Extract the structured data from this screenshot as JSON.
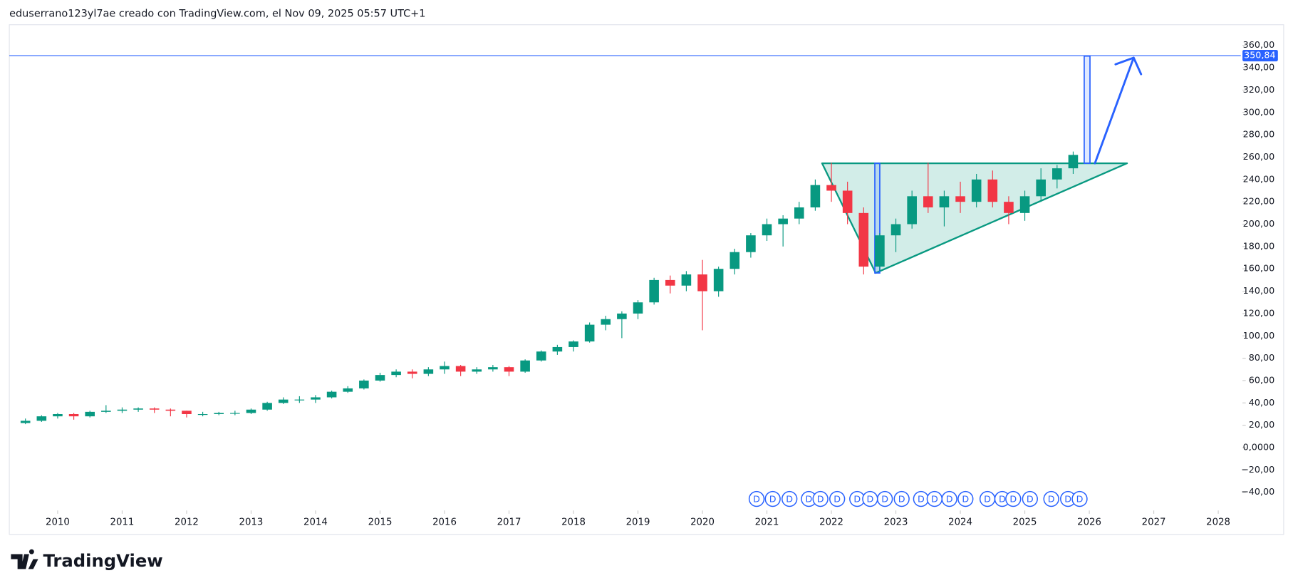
{
  "header": {
    "title": "eduserrano123yl7ae creado con TradingView.com, el Nov 09, 2025 05:57 UTC+1",
    "brand": "TradingView"
  },
  "chart_data": {
    "type": "candlestick",
    "x": [
      2009.5,
      2009.75,
      2010,
      2010.25,
      2010.5,
      2010.75,
      2011,
      2011.25,
      2011.5,
      2011.75,
      2012,
      2012.25,
      2012.5,
      2012.75,
      2013,
      2013.25,
      2013.5,
      2013.75,
      2014,
      2014.25,
      2014.5,
      2014.75,
      2015,
      2015.25,
      2015.5,
      2015.75,
      2016,
      2016.25,
      2016.5,
      2016.75,
      2017,
      2017.25,
      2017.5,
      2017.75,
      2018,
      2018.25,
      2018.5,
      2018.75,
      2019,
      2019.25,
      2019.5,
      2019.75,
      2020,
      2020.25,
      2020.5,
      2020.75,
      2021,
      2021.25,
      2021.5,
      2021.75,
      2022,
      2022.25,
      2022.5,
      2022.75,
      2023,
      2023.25,
      2023.5,
      2023.75,
      2024,
      2024.25,
      2024.5,
      2024.75,
      2025,
      2025.25,
      2025.5,
      2025.75
    ],
    "open": [
      22,
      24,
      28,
      30,
      28,
      32,
      33,
      34,
      35,
      34,
      33,
      30,
      30,
      31,
      31,
      34,
      40,
      43,
      43,
      45,
      50,
      53,
      60,
      65,
      68,
      66,
      70,
      73,
      68,
      70,
      72,
      68,
      78,
      86,
      90,
      95,
      110,
      115,
      120,
      130,
      150,
      145,
      155,
      140,
      160,
      175,
      190,
      200,
      205,
      215,
      235,
      230,
      210,
      162,
      190,
      200,
      225,
      215,
      225,
      220,
      240,
      220,
      210,
      225,
      240,
      250
    ],
    "high": [
      26,
      29,
      31,
      31,
      33,
      38,
      36,
      36,
      36,
      35,
      33,
      32,
      32,
      33,
      35,
      41,
      45,
      46,
      47,
      51,
      55,
      61,
      67,
      70,
      70,
      72,
      77,
      74,
      72,
      74,
      73,
      79,
      87,
      92,
      96,
      112,
      118,
      122,
      132,
      152,
      154,
      158,
      168,
      162,
      178,
      192,
      205,
      208,
      220,
      240,
      255,
      238,
      215,
      192,
      205,
      230,
      255,
      230,
      238,
      245,
      248,
      225,
      230,
      250,
      253,
      265
    ],
    "low": [
      21,
      23,
      26,
      25,
      27,
      31,
      31,
      32,
      31,
      28,
      27,
      28,
      29,
      29,
      30,
      33,
      39,
      40,
      40,
      44,
      49,
      52,
      59,
      63,
      62,
      64,
      66,
      64,
      66,
      68,
      64,
      67,
      77,
      83,
      86,
      94,
      105,
      98,
      115,
      128,
      138,
      140,
      105,
      135,
      155,
      170,
      185,
      180,
      200,
      212,
      220,
      200,
      155,
      158,
      175,
      196,
      210,
      198,
      210,
      215,
      215,
      200,
      203,
      220,
      232,
      245
    ],
    "close": [
      24,
      28,
      30,
      28,
      32,
      33,
      34,
      35,
      34,
      33,
      30,
      30,
      31,
      31,
      34,
      40,
      43,
      43,
      45,
      50,
      53,
      60,
      65,
      68,
      66,
      70,
      73,
      68,
      70,
      72,
      68,
      78,
      86,
      90,
      95,
      110,
      115,
      120,
      130,
      150,
      145,
      155,
      140,
      160,
      175,
      190,
      200,
      205,
      215,
      235,
      230,
      210,
      162,
      190,
      200,
      225,
      215,
      225,
      220,
      240,
      220,
      210,
      225,
      240,
      250,
      262
    ],
    "up_color": "#089981",
    "down_color": "#f23645",
    "xlim": [
      2009.25,
      2028.35
    ],
    "xticks": [
      2010,
      2011,
      2012,
      2013,
      2014,
      2015,
      2016,
      2017,
      2018,
      2019,
      2020,
      2021,
      2022,
      2023,
      2024,
      2025,
      2026,
      2027,
      2028
    ],
    "ylim": [
      -54.8,
      378.5
    ],
    "yticks": [
      {
        "value": -40,
        "label": "−40,00"
      },
      {
        "value": -20,
        "label": "−20,00"
      },
      {
        "value": 0,
        "label": "0,0000"
      },
      {
        "value": 20,
        "label": "20,00"
      },
      {
        "value": 40,
        "label": "40,00"
      },
      {
        "value": 60,
        "label": "60,00"
      },
      {
        "value": 80,
        "label": "80,00"
      },
      {
        "value": 100,
        "label": "100,00"
      },
      {
        "value": 120,
        "label": "120,00"
      },
      {
        "value": 140,
        "label": "140,00"
      },
      {
        "value": 160,
        "label": "160,00"
      },
      {
        "value": 180,
        "label": "180,00"
      },
      {
        "value": 200,
        "label": "200,00"
      },
      {
        "value": 220,
        "label": "220,00"
      },
      {
        "value": 240,
        "label": "240,00"
      },
      {
        "value": 260,
        "label": "260,00"
      },
      {
        "value": 280,
        "label": "280,00"
      },
      {
        "value": 300,
        "label": "300,00"
      },
      {
        "value": 320,
        "label": "320,00"
      },
      {
        "value": 340,
        "label": "340,00"
      },
      {
        "value": 360,
        "label": "360,00"
      }
    ],
    "price_line": {
      "value": 350.84,
      "label": "350,84",
      "color": "#2962ff"
    },
    "dividends": {
      "x": [
        2020.84,
        2021.09,
        2021.35,
        2021.65,
        2021.83,
        2022.09,
        2022.4,
        2022.6,
        2022.83,
        2023.09,
        2023.39,
        2023.6,
        2023.83,
        2024.08,
        2024.42,
        2024.65,
        2024.82,
        2025.08,
        2025.41,
        2025.67,
        2025.85
      ],
      "labels": [
        "D",
        "D",
        "D",
        "D",
        "D",
        "D",
        "D",
        "D",
        "D",
        "D",
        "D",
        "D",
        "D",
        "D",
        "D",
        "D",
        "D",
        "D",
        "D",
        "D",
        "D"
      ]
    }
  }
}
